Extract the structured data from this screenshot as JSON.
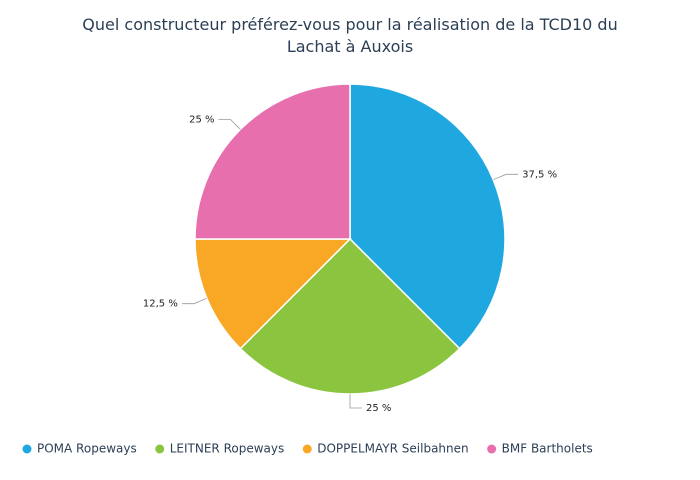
{
  "chart_data": {
    "type": "pie",
    "title": "Quel constructeur préférez-vous pour la réalisation de la TCD10 du Lachat à Auxois",
    "categories": [
      "POMA Ropeways",
      "LEITNER Ropeways",
      "DOPPELMAYR Seilbahnen",
      "BMF Bartholets"
    ],
    "values": [
      37.5,
      25,
      12.5,
      25
    ],
    "value_labels": [
      "37,5 %",
      "25 %",
      "12,5 %",
      "25 %"
    ],
    "colors": [
      "#1fa8e0",
      "#8bc540",
      "#f9a825",
      "#e86fae"
    ],
    "legend": "bottom"
  }
}
